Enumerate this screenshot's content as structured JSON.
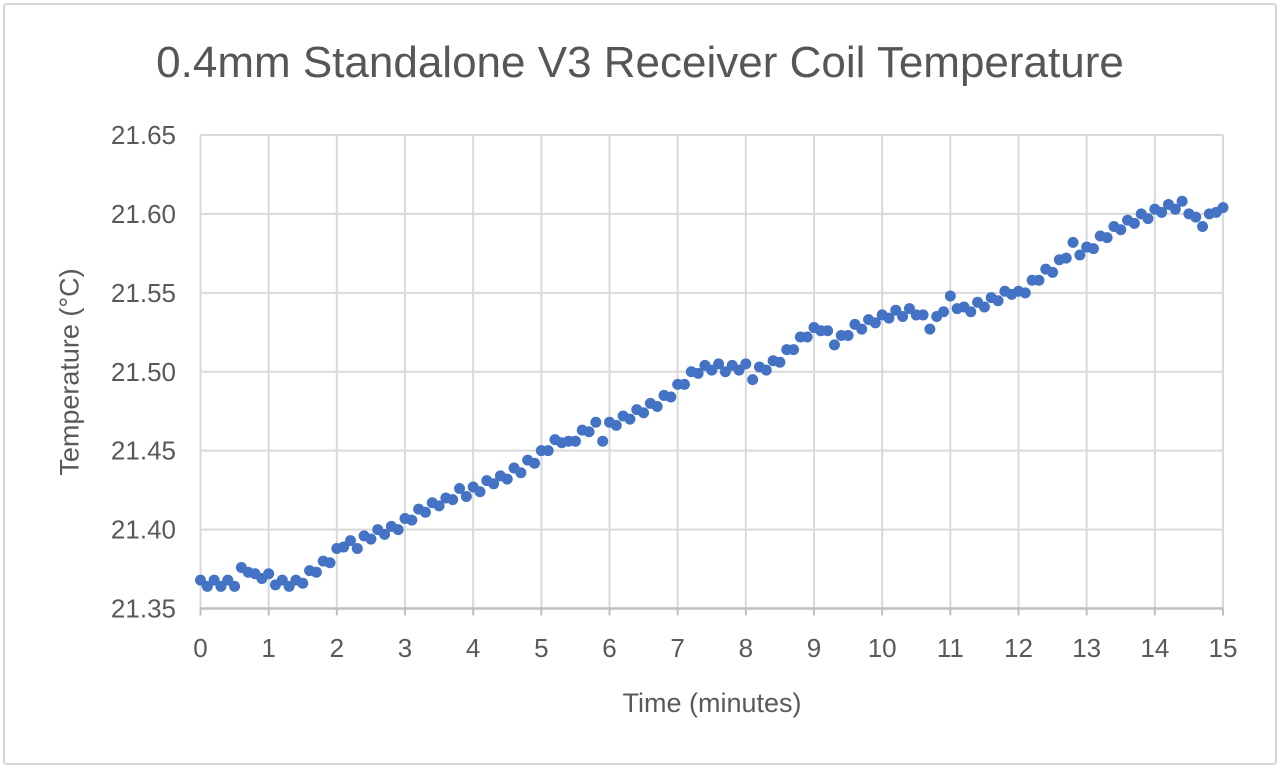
{
  "page": {
    "background": "#ffffff",
    "frame_border_color": "#d7d7d7"
  },
  "chart_data": {
    "type": "scatter",
    "title": "0.4mm Standalone V3 Receiver Coil Temperature",
    "xlabel": "Time (minutes)",
    "ylabel": "Temperature (°C)",
    "xlim": [
      0,
      15
    ],
    "ylim": [
      21.35,
      21.65
    ],
    "xticks": [
      0,
      1,
      2,
      3,
      4,
      5,
      6,
      7,
      8,
      9,
      10,
      11,
      12,
      13,
      14,
      15
    ],
    "ytick_values": [
      21.35,
      21.4,
      21.45,
      21.5,
      21.55,
      21.6,
      21.65
    ],
    "ytick_labels": [
      "21.35",
      "21.40",
      "21.45",
      "21.50",
      "21.55",
      "21.60",
      "21.65"
    ],
    "grid": true,
    "legend": "none",
    "marker": {
      "shape": "circle",
      "radius_px": 5.5,
      "color": "#4472C4"
    },
    "colors": {
      "grid": "#D9D9D9",
      "axis_line": "#BFBFBF",
      "text": "#595959"
    },
    "series": [
      {
        "name": "Receiver coil temperature",
        "x_start": 0,
        "x_step": 0.1,
        "values": [
          21.368,
          21.364,
          21.368,
          21.364,
          21.368,
          21.364,
          21.376,
          21.373,
          21.372,
          21.369,
          21.372,
          21.365,
          21.368,
          21.364,
          21.368,
          21.366,
          21.374,
          21.373,
          21.38,
          21.379,
          21.388,
          21.389,
          21.393,
          21.388,
          21.396,
          21.394,
          21.4,
          21.397,
          21.402,
          21.4,
          21.407,
          21.406,
          21.413,
          21.411,
          21.417,
          21.415,
          21.42,
          21.419,
          21.426,
          21.421,
          21.427,
          21.424,
          21.431,
          21.429,
          21.434,
          21.432,
          21.439,
          21.436,
          21.444,
          21.442,
          21.45,
          21.45,
          21.457,
          21.455,
          21.456,
          21.456,
          21.463,
          21.462,
          21.468,
          21.456,
          21.468,
          21.466,
          21.472,
          21.47,
          21.476,
          21.474,
          21.48,
          21.478,
          21.485,
          21.484,
          21.492,
          21.492,
          21.5,
          21.499,
          21.504,
          21.501,
          21.505,
          21.5,
          21.504,
          21.501,
          21.505,
          21.495,
          21.503,
          21.501,
          21.507,
          21.506,
          21.514,
          21.514,
          21.522,
          21.522,
          21.528,
          21.526,
          21.526,
          21.517,
          21.523,
          21.523,
          21.53,
          21.527,
          21.533,
          21.531,
          21.536,
          21.534,
          21.539,
          21.535,
          21.54,
          21.536,
          21.536,
          21.527,
          21.535,
          21.538,
          21.548,
          21.54,
          21.541,
          21.538,
          21.544,
          21.541,
          21.547,
          21.545,
          21.551,
          21.549,
          21.551,
          21.55,
          21.558,
          21.558,
          21.565,
          21.563,
          21.571,
          21.572,
          21.582,
          21.574,
          21.579,
          21.578,
          21.586,
          21.585,
          21.592,
          21.59,
          21.596,
          21.594,
          21.6,
          21.597,
          21.603,
          21.601,
          21.606,
          21.603,
          21.608,
          21.6,
          21.598,
          21.592,
          21.6,
          21.601,
          21.604
        ]
      }
    ]
  }
}
